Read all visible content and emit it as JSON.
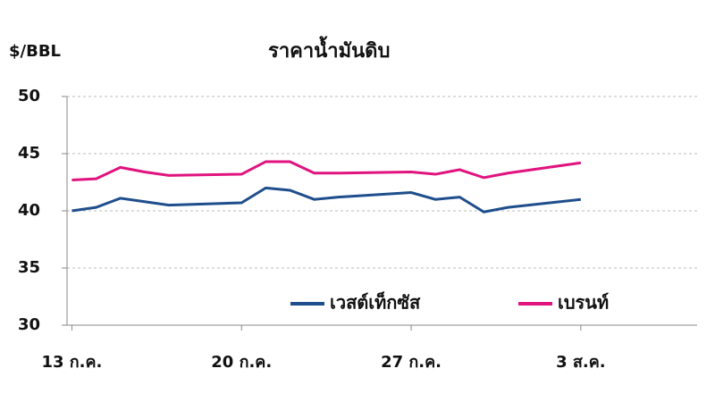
{
  "chart_data": {
    "type": "line",
    "title": "ราคาน้ำมันดิบ",
    "y_label": "$/BBL",
    "x": [
      0,
      1,
      2,
      3,
      4,
      7,
      8,
      9,
      10,
      11,
      14,
      15,
      16,
      17,
      18,
      21
    ],
    "xlim": [
      -0.2,
      25.8
    ],
    "xticks": [
      {
        "value": 0,
        "label": "13 ก.ค."
      },
      {
        "value": 7,
        "label": "20 ก.ค."
      },
      {
        "value": 14,
        "label": "27 ก.ค."
      },
      {
        "value": 21,
        "label": "3 ส.ค."
      }
    ],
    "ylim": [
      30,
      50
    ],
    "yticks": [
      30,
      35,
      40,
      45,
      50
    ],
    "grid": true,
    "legend": "lower right",
    "series": [
      {
        "name": "เวสต์เท็กซัส",
        "color": "#1f4e8c",
        "values": [
          40.0,
          40.3,
          41.1,
          40.8,
          40.5,
          40.7,
          42.0,
          41.8,
          41.0,
          41.2,
          41.6,
          41.0,
          41.2,
          39.9,
          40.3,
          41.0
        ]
      },
      {
        "name": "เบรนท์",
        "color": "#e0137f",
        "values": [
          42.7,
          42.8,
          43.8,
          43.4,
          43.1,
          43.2,
          44.3,
          44.3,
          43.3,
          43.3,
          43.4,
          43.2,
          43.6,
          42.9,
          43.3,
          44.2
        ]
      }
    ]
  }
}
